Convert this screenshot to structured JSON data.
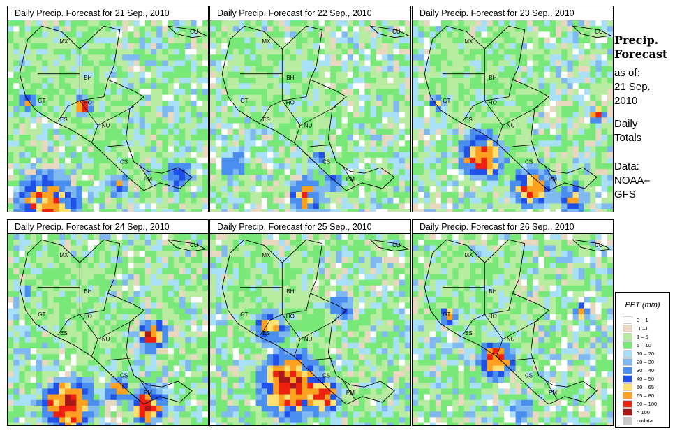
{
  "panels": [
    {
      "title": "Daily Precip. Forecast for  21 Sep., 2010",
      "seed": 11,
      "profile": "p21"
    },
    {
      "title": "Daily Precip. Forecast for  22 Sep., 2010",
      "seed": 23,
      "profile": "p22"
    },
    {
      "title": "Daily Precip. Forecast for  23 Sep., 2010",
      "seed": 37,
      "profile": "p23"
    },
    {
      "title": "Daily Precip. Forecast for  24 Sep., 2010",
      "seed": 41,
      "profile": "p24"
    },
    {
      "title": "Daily Precip. Forecast for  25 Sep., 2010",
      "seed": 53,
      "profile": "p25"
    },
    {
      "title": "Daily Precip. Forecast for  26 Sep., 2010",
      "seed": 67,
      "profile": "p26"
    }
  ],
  "country_labels": [
    "MX",
    "CU",
    "BH",
    "GT",
    "HO",
    "ES",
    "NU",
    "CS",
    "PM"
  ],
  "sidebar": {
    "title_line1": "Precip.",
    "title_line2": "Forecast",
    "asof_line1": "as of:",
    "asof_line2": "21 Sep.",
    "asof_line3": "2010",
    "daily_line1": "Daily",
    "daily_line2": "Totals",
    "data_line1": "Data:",
    "data_line2": "NOAA–",
    "data_line3": "GFS"
  },
  "legend": {
    "title": "PPT (mm)",
    "items": [
      {
        "label": "0 – 1",
        "color": "#ffffff"
      },
      {
        "label": ".1 –1",
        "color": "#e8d8c0"
      },
      {
        "label": "1 – 5",
        "color": "#b8eca0"
      },
      {
        "label": "5 – 10",
        "color": "#78e878"
      },
      {
        "label": "10 – 20",
        "color": "#a8e0f8"
      },
      {
        "label": "20 – 30",
        "color": "#80b8f0"
      },
      {
        "label": "30 – 40",
        "color": "#4a8ef0"
      },
      {
        "label": "40 – 50",
        "color": "#2050e8"
      },
      {
        "label": "50 – 65",
        "color": "#ffe070"
      },
      {
        "label": "65 – 80",
        "color": "#ffa020"
      },
      {
        "label": "80 – 100",
        "color": "#ee2010"
      },
      {
        "label": "> 100",
        "color": "#a81818"
      },
      {
        "label": "nodata",
        "color": "#c8c8c8"
      }
    ]
  }
}
